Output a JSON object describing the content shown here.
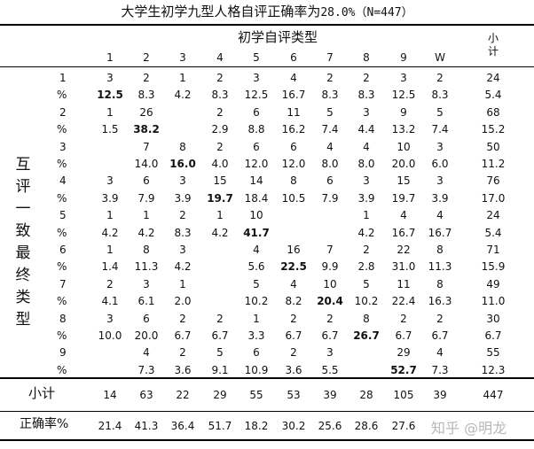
{
  "title": {
    "main": "大学生初学九型人格自评正确率为",
    "pct": "28.0%",
    "n": "（N=447）"
  },
  "group_header": "初学自评类型",
  "subtotal_header": "小\n计",
  "side_label": "互评一致最终类型",
  "columns": [
    "1",
    "2",
    "3",
    "4",
    "5",
    "6",
    "7",
    "8",
    "9",
    "W"
  ],
  "rows": [
    {
      "label": "1",
      "cells": [
        "3",
        "2",
        "1",
        "2",
        "3",
        "4",
        "2",
        "2",
        "3",
        "2",
        "24"
      ]
    },
    {
      "label": "%",
      "cells": [
        "12.5",
        "8.3",
        "4.2",
        "8.3",
        "12.5",
        "16.7",
        "8.3",
        "8.3",
        "12.5",
        "8.3",
        "5.4"
      ],
      "bold": 0
    },
    {
      "label": "2",
      "cells": [
        "1",
        "26",
        "",
        "2",
        "6",
        "11",
        "5",
        "3",
        "9",
        "5",
        "68"
      ]
    },
    {
      "label": "%",
      "cells": [
        "1.5",
        "38.2",
        "",
        "2.9",
        "8.8",
        "16.2",
        "7.4",
        "4.4",
        "13.2",
        "7.4",
        "15.2"
      ],
      "bold": 1
    },
    {
      "label": "3",
      "cells": [
        "",
        "7",
        "8",
        "2",
        "6",
        "6",
        "4",
        "4",
        "10",
        "3",
        "50"
      ]
    },
    {
      "label": "%",
      "cells": [
        "",
        "14.0",
        "16.0",
        "4.0",
        "12.0",
        "12.0",
        "8.0",
        "8.0",
        "20.0",
        "6.0",
        "11.2"
      ],
      "bold": 2
    },
    {
      "label": "4",
      "cells": [
        "3",
        "6",
        "3",
        "15",
        "14",
        "8",
        "6",
        "3",
        "15",
        "3",
        "76"
      ]
    },
    {
      "label": "%",
      "cells": [
        "3.9",
        "7.9",
        "3.9",
        "19.7",
        "18.4",
        "10.5",
        "7.9",
        "3.9",
        "19.7",
        "3.9",
        "17.0"
      ],
      "bold": 3
    },
    {
      "label": "5",
      "cells": [
        "1",
        "1",
        "2",
        "1",
        "10",
        "",
        "",
        "1",
        "4",
        "4",
        "24"
      ]
    },
    {
      "label": "%",
      "cells": [
        "4.2",
        "4.2",
        "8.3",
        "4.2",
        "41.7",
        "",
        "",
        "4.2",
        "16.7",
        "16.7",
        "5.4"
      ],
      "bold": 4
    },
    {
      "label": "6",
      "cells": [
        "1",
        "8",
        "3",
        "",
        "4",
        "16",
        "7",
        "2",
        "22",
        "8",
        "71"
      ]
    },
    {
      "label": "%",
      "cells": [
        "1.4",
        "11.3",
        "4.2",
        "",
        "5.6",
        "22.5",
        "9.9",
        "2.8",
        "31.0",
        "11.3",
        "15.9"
      ],
      "bold": 5
    },
    {
      "label": "7",
      "cells": [
        "2",
        "3",
        "1",
        "",
        "5",
        "4",
        "10",
        "5",
        "11",
        "8",
        "49"
      ]
    },
    {
      "label": "%",
      "cells": [
        "4.1",
        "6.1",
        "2.0",
        "",
        "10.2",
        "8.2",
        "20.4",
        "10.2",
        "22.4",
        "16.3",
        "11.0"
      ],
      "bold": 6
    },
    {
      "label": "8",
      "cells": [
        "3",
        "6",
        "2",
        "2",
        "1",
        "2",
        "2",
        "8",
        "2",
        "2",
        "30"
      ]
    },
    {
      "label": "%",
      "cells": [
        "10.0",
        "20.0",
        "6.7",
        "6.7",
        "3.3",
        "6.7",
        "6.7",
        "26.7",
        "6.7",
        "6.7",
        "6.7"
      ],
      "bold": 7
    },
    {
      "label": "9",
      "cells": [
        "",
        "4",
        "2",
        "5",
        "6",
        "2",
        "3",
        "",
        "29",
        "4",
        "55"
      ]
    },
    {
      "label": "%",
      "cells": [
        "",
        "7.3",
        "3.6",
        "9.1",
        "10.9",
        "3.6",
        "5.5",
        "",
        "52.7",
        "7.3",
        "12.3"
      ],
      "bold": 8
    }
  ],
  "subtotal_row": {
    "label": "小计",
    "cells": [
      "14",
      "63",
      "22",
      "29",
      "55",
      "53",
      "39",
      "28",
      "105",
      "39",
      "447"
    ]
  },
  "accuracy_row": {
    "label": "正确率%",
    "cells": [
      "21.4",
      "41.3",
      "36.4",
      "51.7",
      "18.2",
      "30.2",
      "25.6",
      "28.6",
      "27.6",
      "",
      ""
    ]
  },
  "watermark": "知乎 @明龙"
}
